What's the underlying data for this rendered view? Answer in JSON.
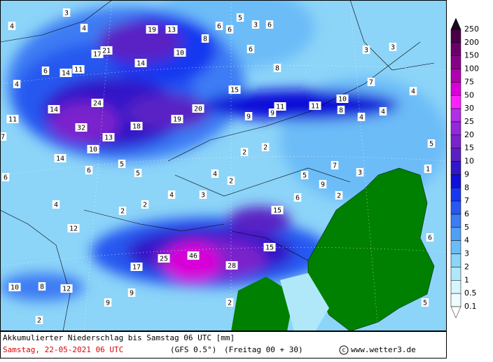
{
  "title": "Akkumulierter Niederschlag bis Samstag 06 UTC [mm]",
  "date": "Samstag, 22-05-2021  06 UTC",
  "model": "(GFS 0.5°)",
  "run": "(Freitag 00 + 30)",
  "copyright_symbol": "c",
  "source": "www.wetter3.de",
  "colorbar": {
    "levels": [
      250,
      200,
      150,
      100,
      75,
      50,
      30,
      25,
      20,
      15,
      10,
      9,
      8,
      7,
      6,
      5,
      4,
      3,
      2,
      1,
      0.5,
      0.1
    ],
    "colors": [
      "#1a0a1a",
      "#4a0048",
      "#6a0068",
      "#880088",
      "#b000b0",
      "#d800d8",
      "#ff20ff",
      "#b030e8",
      "#9428dc",
      "#7a22cc",
      "#5a20c4",
      "#3018c8",
      "#1010d8",
      "#1838f0",
      "#2858f0",
      "#3c7cf4",
      "#50a0f4",
      "#6cbcf8",
      "#8cd4f8",
      "#b0e8fa",
      "#d4f6fc",
      "#eefcfe",
      "#ffffff"
    ]
  },
  "map_values": [
    3,
    4,
    4,
    19,
    13,
    6,
    6,
    5,
    3,
    6,
    8,
    10,
    17,
    21,
    6,
    3,
    3,
    11,
    14,
    6,
    14,
    8,
    4,
    15,
    7,
    4,
    24,
    14,
    20,
    11,
    32,
    19,
    9,
    9,
    11,
    11,
    10,
    8,
    4,
    4,
    18,
    13,
    7,
    10,
    2,
    2,
    5,
    14,
    6,
    5,
    5,
    4,
    2,
    7,
    5,
    3,
    1,
    6,
    9,
    4,
    3,
    2,
    6,
    4,
    2,
    2,
    15,
    12,
    6,
    15,
    46,
    25,
    17,
    28,
    10,
    8,
    12,
    9,
    9,
    2,
    5,
    2
  ]
}
